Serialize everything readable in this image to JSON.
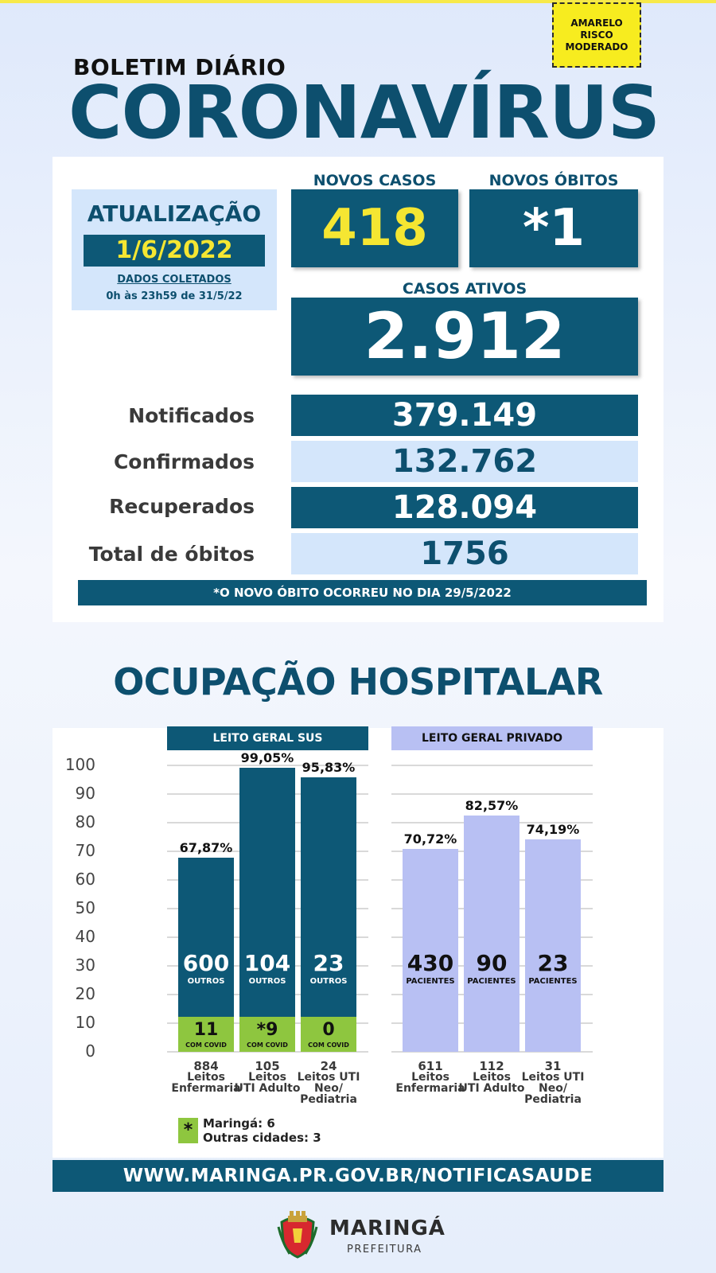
{
  "risk_badge": [
    "AMARELO",
    "RISCO",
    "MODERADO"
  ],
  "header": {
    "subtitle": "BOLETIM DIÁRIO",
    "title": "CORONAVÍRUS"
  },
  "update": {
    "title": "ATUALIZAÇÃO",
    "date": "1/6/2022",
    "collected_label": "DADOS COLETADOS",
    "collected_range": "0h às 23h59 de 31/5/22"
  },
  "kpis": {
    "new_cases_label": "NOVOS CASOS",
    "new_cases_value": "418",
    "new_deaths_label": "NOVOS ÓBITOS",
    "new_deaths_value": "*1",
    "active_label": "CASOS ATIVOS",
    "active_value": "2.912"
  },
  "totals": [
    {
      "label": "Notificados",
      "value": "379.149"
    },
    {
      "label": "Confirmados",
      "value": "132.762"
    },
    {
      "label": "Recuperados",
      "value": "128.094"
    },
    {
      "label": "Total de óbitos",
      "value": "1756"
    }
  ],
  "footnote": "*O NOVO  ÓBITO OCORREU NO DIA 29/5/2022",
  "hospital": {
    "title": "OCUPAÇÃO HOSPITALAR",
    "sus_title": "LEITO GERAL SUS",
    "private_title": "LEITO GERAL PRIVADO",
    "legend": {
      "marker": "*",
      "line1": "Maringá: 6",
      "line2": "Outras cidades: 3"
    }
  },
  "chart_data": {
    "type": "bar",
    "ylim": [
      0,
      100
    ],
    "yticks": [
      "100",
      "90",
      "80",
      "70",
      "60",
      "50",
      "40",
      "30",
      "20",
      "10",
      "0"
    ],
    "panels": [
      {
        "name": "LEITO GERAL SUS",
        "bars": [
          {
            "beds": "884",
            "cat": [
              "Leitos",
              "Enfermaria"
            ],
            "pct": 67.87,
            "pct_label": "67,87%",
            "main": "600",
            "main_sub": "OUTROS",
            "covid": "11",
            "covid_sub": "COM COVID"
          },
          {
            "beds": "105",
            "cat": [
              "Leitos",
              "UTI Adulto"
            ],
            "pct": 99.05,
            "pct_label": "99,05%",
            "main": "104",
            "main_sub": "OUTROS",
            "covid": "*9",
            "covid_sub": "COM COVID"
          },
          {
            "beds": "24",
            "cat": [
              "Leitos UTI",
              "Neo/",
              "Pediatria"
            ],
            "pct": 95.83,
            "pct_label": "95,83%",
            "main": "23",
            "main_sub": "OUTROS",
            "covid": "0",
            "covid_sub": "COM COVID"
          }
        ]
      },
      {
        "name": "LEITO GERAL PRIVADO",
        "bars": [
          {
            "beds": "611",
            "cat": [
              "Leitos",
              "Enfermaria"
            ],
            "pct": 70.72,
            "pct_label": "70,72%",
            "main": "430",
            "main_sub": "PACIENTES"
          },
          {
            "beds": "112",
            "cat": [
              "Leitos",
              "UTI Adulto"
            ],
            "pct": 82.57,
            "pct_label": "82,57%",
            "main": "90",
            "main_sub": "PACIENTES"
          },
          {
            "beds": "31",
            "cat": [
              "Leitos UTI",
              "Neo/",
              "Pediatria"
            ],
            "pct": 74.19,
            "pct_label": "74,19%",
            "main": "23",
            "main_sub": "PACIENTES"
          }
        ]
      }
    ]
  },
  "footer": {
    "url": "WWW.MARINGA.PR.GOV.BR/NOTIFICASAUDE",
    "brand": "MARINGÁ",
    "brand_sub": "PREFEITURA"
  }
}
